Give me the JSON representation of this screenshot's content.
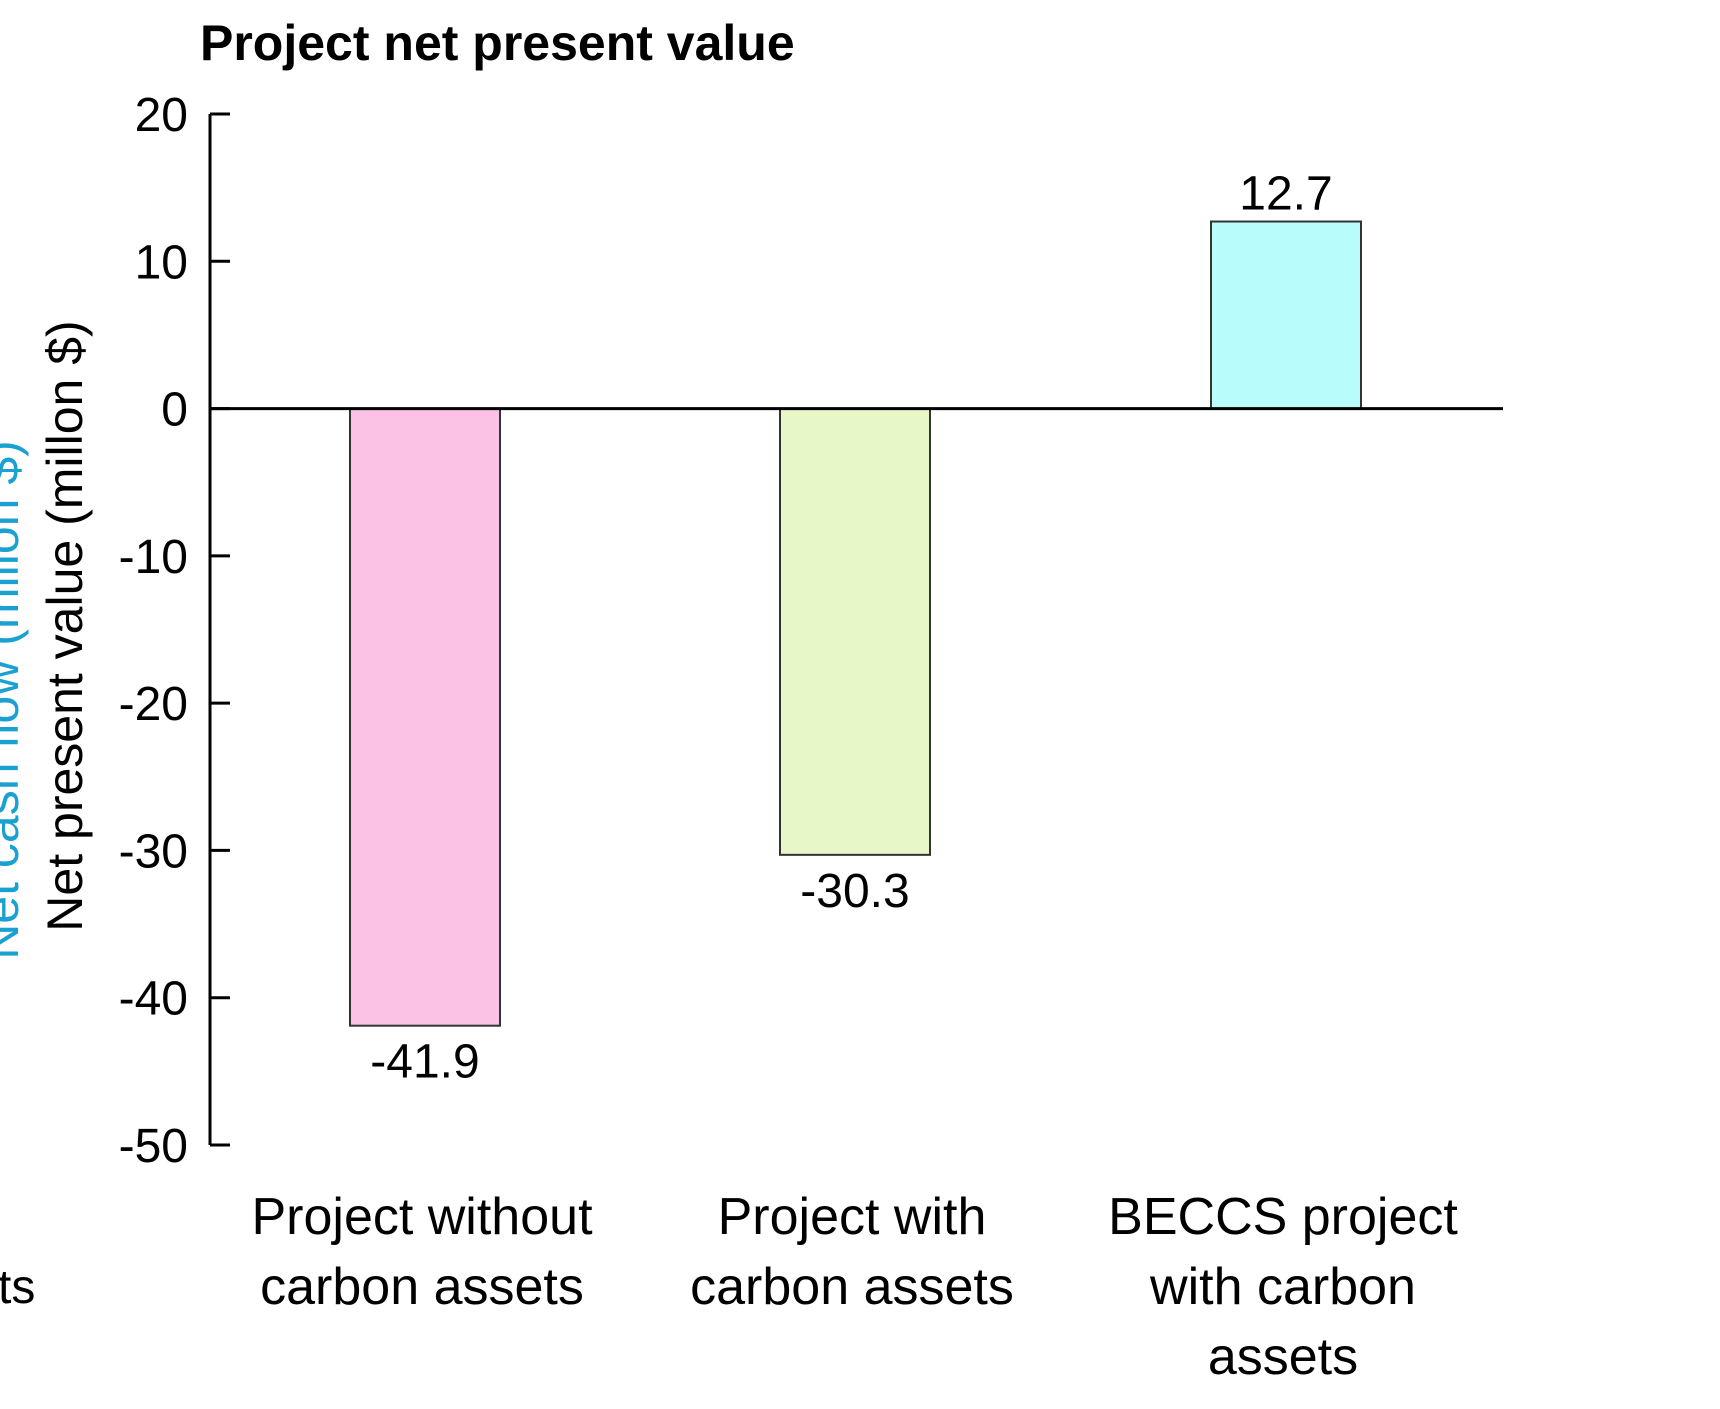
{
  "chart_data": {
    "type": "bar",
    "title": "Project net present value",
    "ylabel": "Net present value (millon $)",
    "xlabel": "",
    "ylim": [
      -50,
      20
    ],
    "yticks": [
      20,
      10,
      0,
      -10,
      -20,
      -30,
      -40,
      -50
    ],
    "grid": false,
    "categories": [
      [
        "Project without",
        "carbon assets"
      ],
      [
        "Project with",
        "carbon assets"
      ],
      [
        "BECCS project",
        "with carbon",
        "assets"
      ]
    ],
    "values": [
      -41.9,
      -30.3,
      12.7
    ],
    "data_labels": [
      "-41.9",
      "-30.3",
      "12.7"
    ],
    "bar_colors": [
      "#fcc2e6",
      "#e7f7c8",
      "#b8fdfb"
    ]
  },
  "cropped_left": {
    "axis_label_fragment": "Net cash flow (millon $)",
    "axis_label_color": "#1ba0d2",
    "text_fragment": "ts"
  }
}
